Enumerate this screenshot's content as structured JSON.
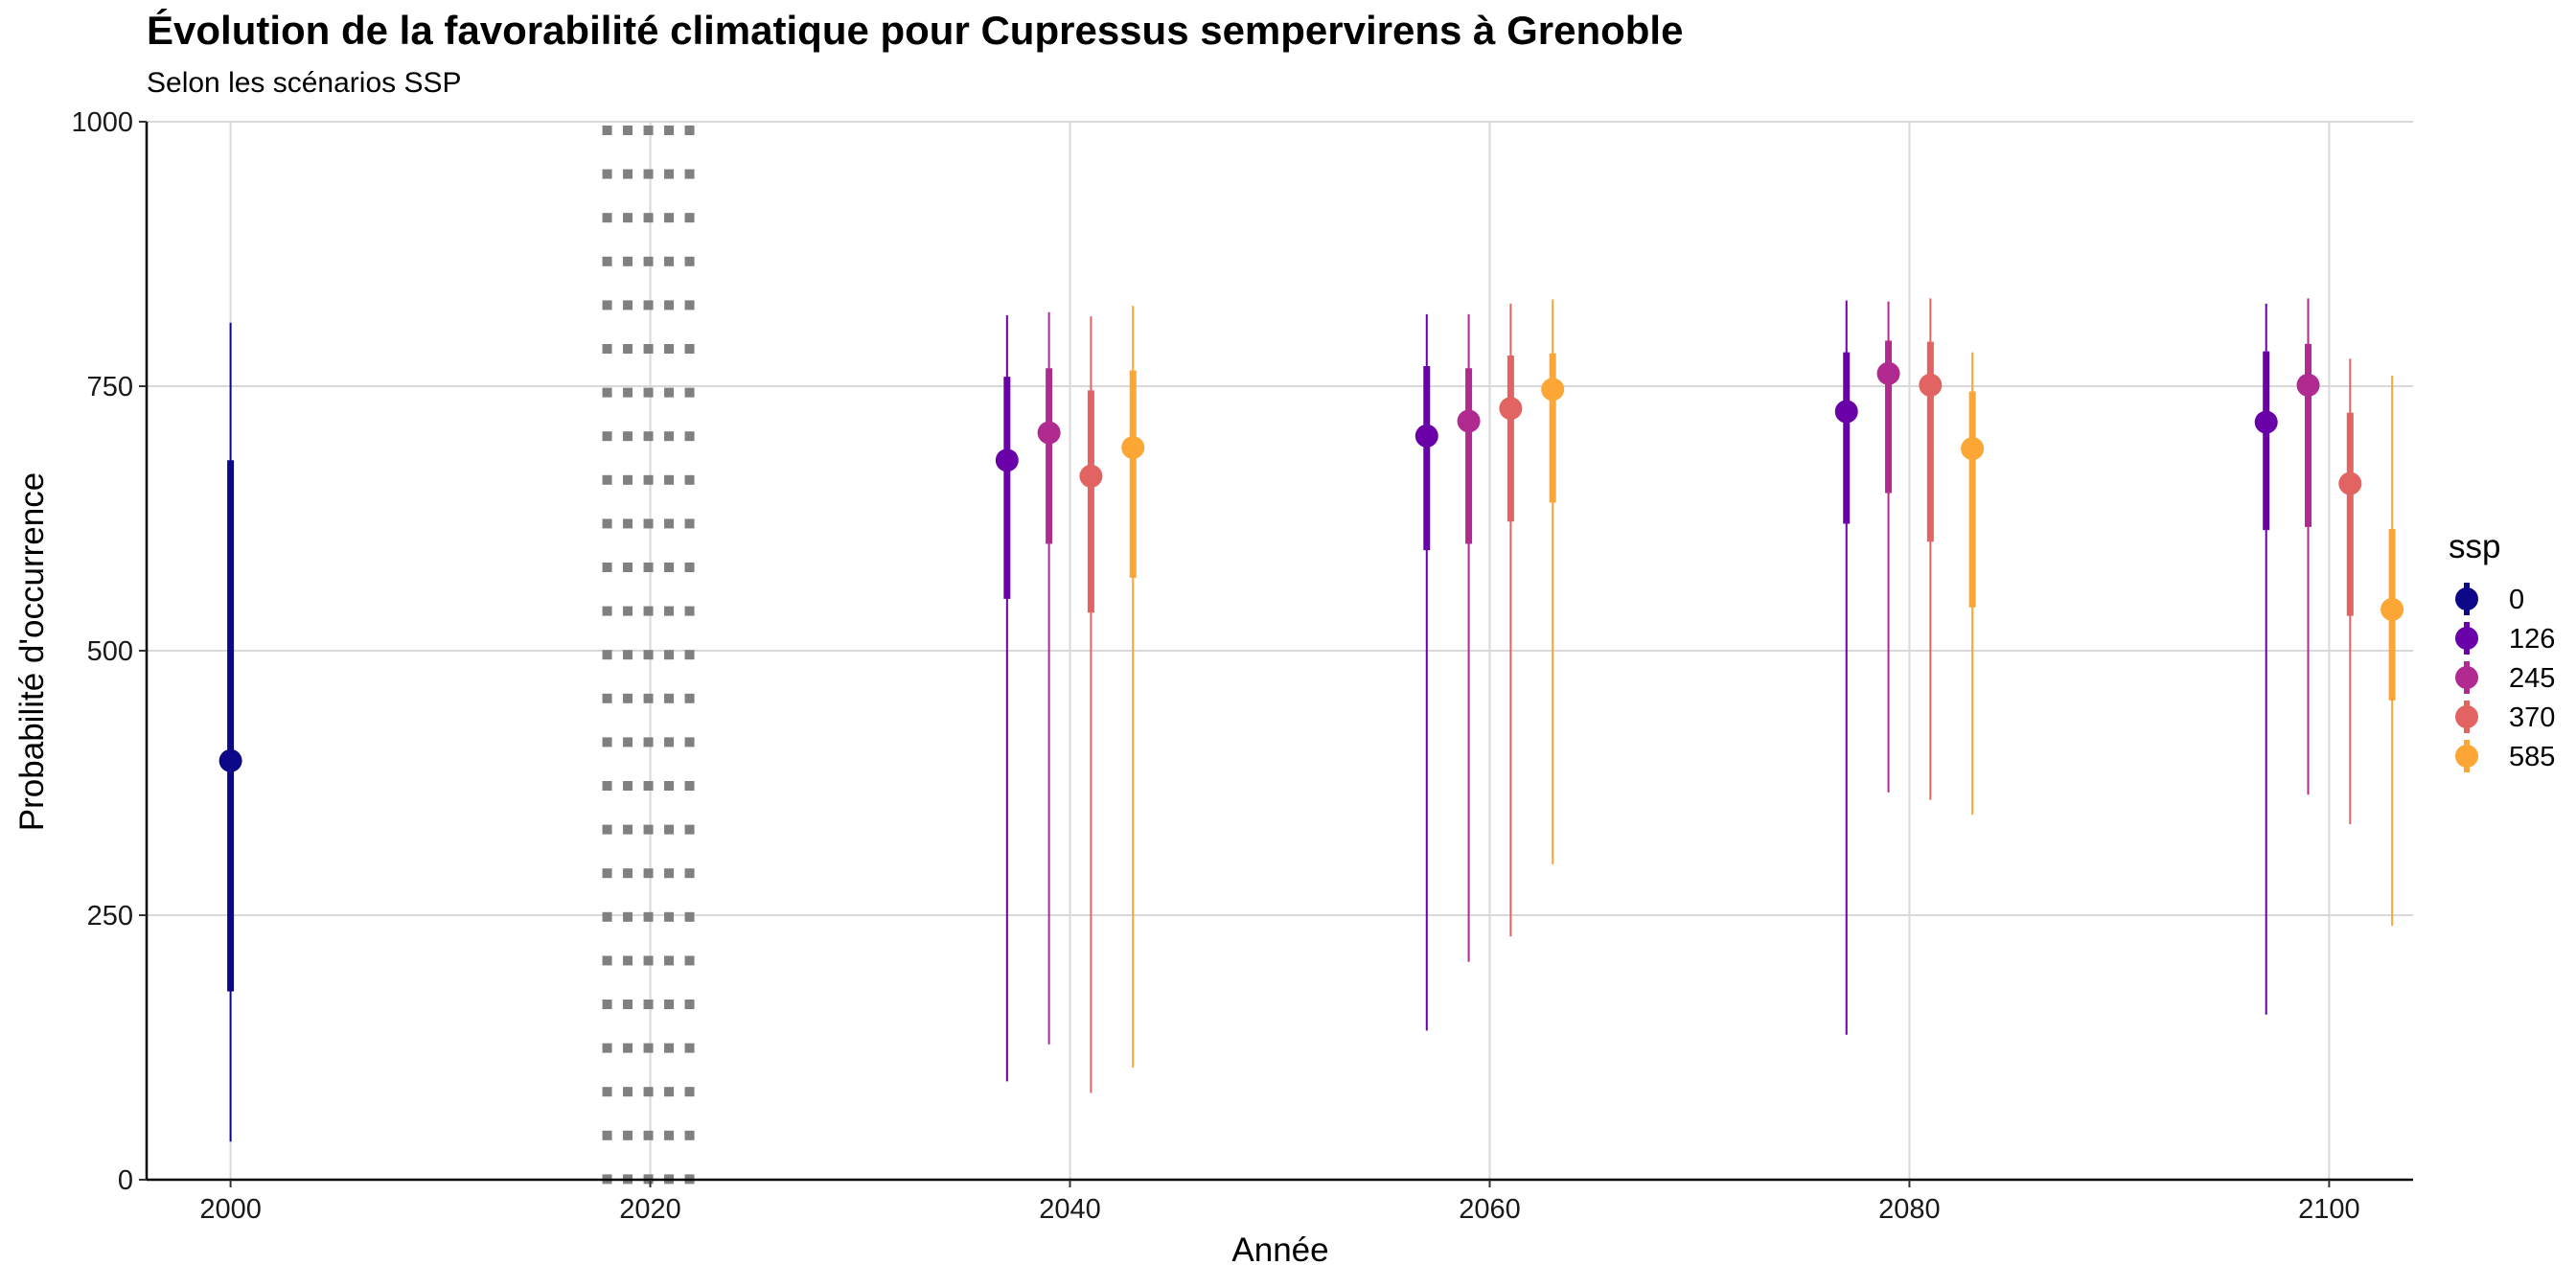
{
  "chart_data": {
    "type": "pointrange",
    "title": "Évolution de la favorabilité climatique pour Cupressus sempervirens à Grenoble",
    "subtitle": "Selon les scénarios SSP",
    "xlabel": "Année",
    "ylabel": "Probabilité d'occurrence",
    "xlim": [
      1996,
      2104
    ],
    "ylim": [
      0,
      1000
    ],
    "x_ticks": [
      2000,
      2020,
      2040,
      2060,
      2080,
      2100
    ],
    "y_ticks": [
      0,
      250,
      500,
      750,
      1000
    ],
    "grid": true,
    "reference_line": {
      "x": 2020,
      "style": "dotted"
    },
    "legend": {
      "title": "ssp",
      "position": "right"
    },
    "series": [
      {
        "name": "0",
        "color": "#0d0887",
        "points": [
          {
            "x": 2000,
            "y": 396,
            "q25": 178,
            "q75": 680,
            "min": 36,
            "max": 810
          }
        ]
      },
      {
        "name": "126",
        "color": "#6a00a8",
        "points": [
          {
            "x": 2040,
            "y": 680,
            "q25": 549,
            "q75": 759,
            "min": 93,
            "max": 817
          },
          {
            "x": 2060,
            "y": 703,
            "q25": 595,
            "q75": 769,
            "min": 141,
            "max": 818
          },
          {
            "x": 2080,
            "y": 726,
            "q25": 620,
            "q75": 782,
            "min": 137,
            "max": 831
          },
          {
            "x": 2100,
            "y": 716,
            "q25": 614,
            "q75": 783,
            "min": 156,
            "max": 828
          }
        ]
      },
      {
        "name": "245",
        "color": "#b12a90",
        "points": [
          {
            "x": 2040,
            "y": 706,
            "q25": 601,
            "q75": 767,
            "min": 128,
            "max": 820
          },
          {
            "x": 2060,
            "y": 717,
            "q25": 601,
            "q75": 767,
            "min": 206,
            "max": 818
          },
          {
            "x": 2080,
            "y": 762,
            "q25": 649,
            "q75": 793,
            "min": 366,
            "max": 830
          },
          {
            "x": 2100,
            "y": 751,
            "q25": 617,
            "q75": 790,
            "min": 364,
            "max": 833
          }
        ]
      },
      {
        "name": "370",
        "color": "#e16462",
        "points": [
          {
            "x": 2040,
            "y": 665,
            "q25": 536,
            "q75": 746,
            "min": 82,
            "max": 816
          },
          {
            "x": 2060,
            "y": 729,
            "q25": 622,
            "q75": 779,
            "min": 230,
            "max": 828
          },
          {
            "x": 2080,
            "y": 751,
            "q25": 603,
            "q75": 792,
            "min": 359,
            "max": 833
          },
          {
            "x": 2100,
            "y": 658,
            "q25": 533,
            "q75": 725,
            "min": 336,
            "max": 776
          }
        ]
      },
      {
        "name": "585",
        "color": "#fca636",
        "points": [
          {
            "x": 2040,
            "y": 692,
            "q25": 569,
            "q75": 765,
            "min": 106,
            "max": 826
          },
          {
            "x": 2060,
            "y": 747,
            "q25": 640,
            "q75": 781,
            "min": 298,
            "max": 832
          },
          {
            "x": 2080,
            "y": 691,
            "q25": 541,
            "q75": 745,
            "min": 345,
            "max": 782
          },
          {
            "x": 2100,
            "y": 539,
            "q25": 453,
            "q75": 615,
            "min": 240,
            "max": 760
          }
        ]
      }
    ]
  }
}
